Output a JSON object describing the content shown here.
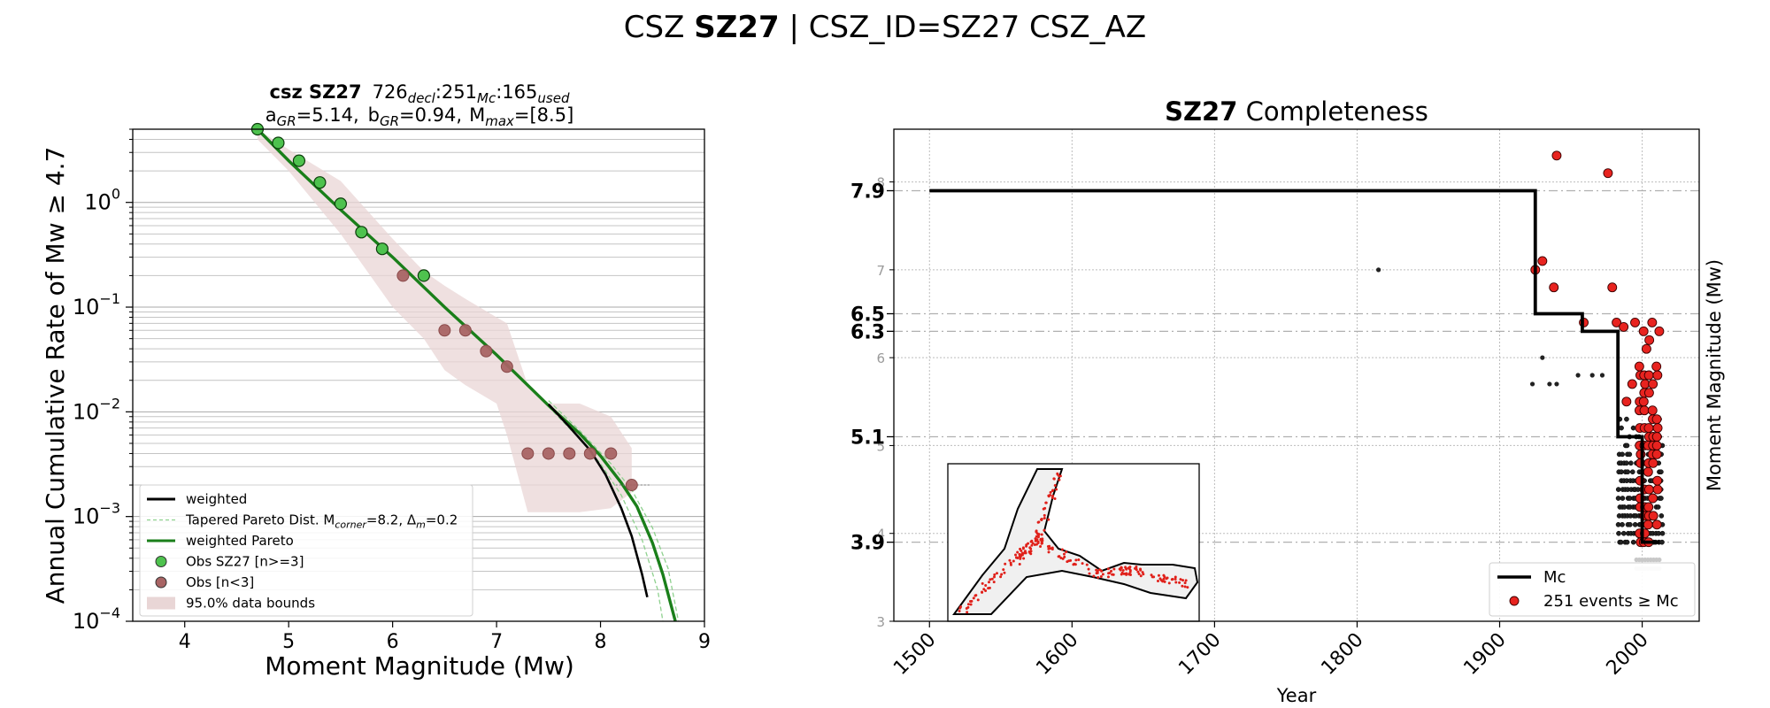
{
  "suptitle": {
    "prefix": "CSZ ",
    "bold": "SZ27",
    "suffix": " | CSZ_ID=SZ27 CSZ_AZ"
  },
  "chart_data": [
    {
      "type": "line",
      "panel": "left",
      "title_line1": {
        "bold": "csz SZ27",
        "n_decl": "726",
        "sub_decl": "decl",
        "n_mc": "251",
        "sub_mc": "Mc",
        "n_used": "165",
        "sub_used": "used"
      },
      "title_line2": {
        "a_label": "a",
        "a_sub": "GR",
        "a_value": "=5.14,",
        "b_label": "b",
        "b_sub": "GR",
        "b_value": "=0.94,",
        "m_label": "M",
        "m_sub": "max",
        "m_value": "=[8.5]"
      },
      "xlabel": "Moment Magnitude (Mw)",
      "ylabel": "Annual Cumulative Rate of Mw ≥ 4.7",
      "xlim": [
        3.5,
        9
      ],
      "ylim": [
        0.0001,
        5
      ],
      "yscale": "log",
      "xticks": [
        4,
        5,
        6,
        7,
        8,
        9
      ],
      "yticks": [
        {
          "value": 0.0001,
          "base": "10",
          "exp": "−4"
        },
        {
          "value": 0.001,
          "base": "10",
          "exp": "−3"
        },
        {
          "value": 0.01,
          "base": "10",
          "exp": "−2"
        },
        {
          "value": 0.1,
          "base": "10",
          "exp": "−1"
        },
        {
          "value": 1,
          "base": "10",
          "exp": "0"
        }
      ],
      "grid": "horizontal major and minor",
      "legend_position": "lower-left",
      "series": [
        {
          "name": "weighted",
          "kind": "line",
          "color": "#000000",
          "x": [
            7.5,
            7.7,
            7.9,
            8.05,
            8.2,
            8.3,
            8.4,
            8.45
          ],
          "y": [
            0.0118,
            0.0072,
            0.0043,
            0.0025,
            0.0012,
            0.00065,
            0.00028,
            0.00017
          ]
        },
        {
          "name": "Tapered Pareto Dist.",
          "kind": "dashed-band",
          "color": "#8fd18f",
          "upper": {
            "x": [
              7.5,
              7.8,
              8.1,
              8.3,
              8.5,
              8.65,
              8.75
            ],
            "y": [
              0.0128,
              0.0066,
              0.0032,
              0.0018,
              0.00078,
              0.00032,
              0.0001
            ]
          },
          "lower": {
            "x": [
              7.5,
              7.8,
              8.0,
              8.2,
              8.4,
              8.55,
              8.6
            ],
            "y": [
              0.0112,
              0.0055,
              0.0032,
              0.0016,
              0.0006,
              0.0002,
              0.0001
            ]
          }
        },
        {
          "name": "weighted Pareto",
          "kind": "line",
          "color": "#1a7f1a",
          "x": [
            4.7,
            5.0,
            5.5,
            6.0,
            6.5,
            7.0,
            7.5,
            7.8,
            8.0,
            8.2,
            8.35,
            8.5,
            8.6,
            8.72
          ],
          "y": [
            5.0,
            2.5,
            0.85,
            0.3,
            0.1,
            0.035,
            0.0115,
            0.0062,
            0.0038,
            0.0021,
            0.00125,
            0.00056,
            0.00028,
            0.0001
          ]
        },
        {
          "name": "Obs SZ27 [n>=3]",
          "kind": "scatter",
          "color": "#4ec24e",
          "x": [
            4.7,
            4.9,
            5.1,
            5.3,
            5.5,
            5.7,
            5.9,
            6.3
          ],
          "y": [
            5.0,
            3.7,
            2.5,
            1.55,
            0.97,
            0.52,
            0.36,
            0.2
          ]
        },
        {
          "name": "Obs [n<3]",
          "kind": "scatter",
          "color": "#a86464",
          "x": [
            6.1,
            6.5,
            6.7,
            6.9,
            7.1,
            7.3,
            7.5,
            7.7,
            7.9,
            8.1,
            8.3
          ],
          "y": [
            0.2,
            0.06,
            0.06,
            0.038,
            0.027,
            0.004,
            0.004,
            0.004,
            0.004,
            0.004,
            0.002
          ]
        },
        {
          "name": "95.0% data bounds",
          "kind": "band",
          "color": "#e9d6d6",
          "x": [
            4.7,
            5.0,
            5.5,
            6.0,
            6.3,
            6.5,
            6.7,
            7.0,
            7.1,
            7.3,
            7.5,
            7.8,
            8.1,
            8.3
          ],
          "upper": [
            5.0,
            3.2,
            1.6,
            0.45,
            0.22,
            0.16,
            0.12,
            0.08,
            0.07,
            0.018,
            0.012,
            0.012,
            0.009,
            0.0045
          ],
          "lower": [
            4.0,
            2.0,
            0.5,
            0.1,
            0.05,
            0.025,
            0.018,
            0.012,
            0.006,
            0.0011,
            0.0011,
            0.0011,
            0.0012,
            0.0017
          ]
        }
      ],
      "legend": [
        {
          "label": "weighted",
          "style": "line",
          "color": "#000000"
        },
        {
          "label_prefix": "Tapered Pareto Dist. M",
          "sub1": "corner",
          "mid": "=8.2, Δ",
          "sub2": "m",
          "suffix": "=0.2",
          "style": "dashed",
          "color": "#8fd18f"
        },
        {
          "label": "weighted Pareto",
          "style": "line",
          "color": "#1a7f1a"
        },
        {
          "label": "Obs SZ27 [n>=3]",
          "style": "dot",
          "color": "#4ec24e"
        },
        {
          "label": "Obs [n<3]",
          "style": "dot",
          "color": "#a86464"
        },
        {
          "label": "95.0% data bounds",
          "style": "patch",
          "color": "#e9d6d6"
        }
      ]
    },
    {
      "type": "scatter",
      "panel": "right",
      "title": {
        "bold": "SZ27",
        "rest": " Completeness"
      },
      "xlabel": "Year",
      "ylabel": "Moment Magnitude (Mw)",
      "xlim": [
        1475,
        2040
      ],
      "ylim": [
        3,
        8.6
      ],
      "xticks": [
        1500,
        1600,
        1700,
        1800,
        1900,
        2000
      ],
      "yticks_minor": [
        3,
        4,
        5,
        6,
        7,
        8
      ],
      "yticks_bold": [
        3.9,
        5.1,
        6.3,
        6.5,
        7.9
      ],
      "grid": "dotted",
      "legend_position": "lower-right",
      "mc_step": {
        "name": "Mc",
        "years": [
          1500,
          1925,
          1925,
          1958,
          1958,
          1983,
          1983,
          2000,
          2000,
          2012
        ],
        "mags": [
          7.9,
          7.9,
          6.5,
          6.5,
          6.3,
          6.3,
          5.1,
          5.1,
          3.9,
          3.9
        ]
      },
      "events_above": {
        "name": "251 events ≥ Mc",
        "color": "#e8231f",
        "x": [
          1940,
          1976,
          1930,
          1925,
          1938,
          1979,
          1959,
          1982,
          1987,
          1995,
          2001,
          2007,
          2012,
          2003,
          1998,
          1993,
          1989,
          2010,
          2005
        ],
        "y": [
          8.3,
          8.1,
          7.1,
          7.0,
          6.8,
          6.8,
          6.4,
          6.4,
          6.35,
          6.4,
          6.3,
          6.4,
          6.3,
          6.1,
          5.9,
          5.7,
          5.5,
          5.9,
          6.2
        ]
      },
      "events_below": {
        "name": "events < Mc",
        "color": "#222222",
        "x": [
          1815,
          1923,
          1935,
          1940,
          1955,
          1965,
          1972,
          1930
        ],
        "y": [
          7.0,
          5.7,
          5.7,
          5.7,
          5.8,
          5.8,
          5.8,
          6.0
        ]
      },
      "inset": "map of zone outline with event locations"
    }
  ]
}
